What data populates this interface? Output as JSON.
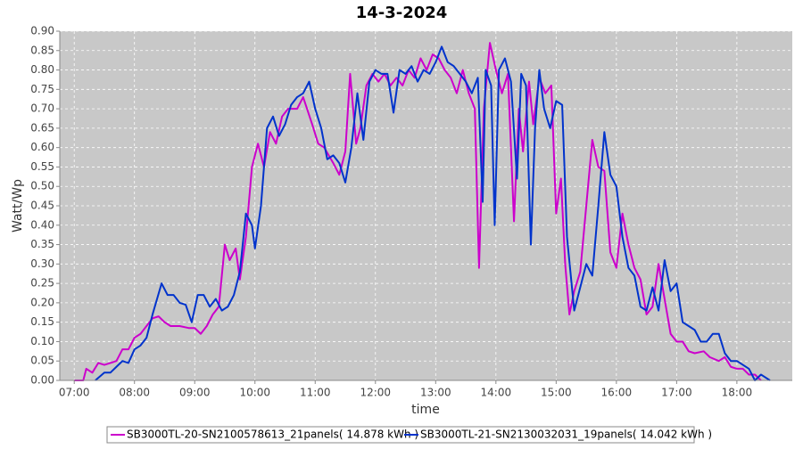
{
  "chart_data": {
    "type": "line",
    "title": "14-3-2024",
    "x_label": "time",
    "y_label": "Watt/Wp",
    "grid": true,
    "legend": "bottom",
    "xlim": [
      6.76,
      18.92
    ],
    "ylim": [
      0,
      0.9
    ],
    "xticks": [
      {
        "value": 7,
        "label": "07:00"
      },
      {
        "value": 8,
        "label": "08:00"
      },
      {
        "value": 9,
        "label": "09:00"
      },
      {
        "value": 10,
        "label": "10:00"
      },
      {
        "value": 11,
        "label": "11:00"
      },
      {
        "value": 12,
        "label": "12:00"
      },
      {
        "value": 13,
        "label": "13:00"
      },
      {
        "value": 14,
        "label": "14:00"
      },
      {
        "value": 15,
        "label": "15:00"
      },
      {
        "value": 16,
        "label": "16:00"
      },
      {
        "value": 17,
        "label": "17:00"
      },
      {
        "value": 18,
        "label": "18:00"
      }
    ],
    "yticks": [
      {
        "value": 0,
        "label": "0.00"
      },
      {
        "value": 0.05,
        "label": "0.05"
      },
      {
        "value": 0.1,
        "label": "0.10"
      },
      {
        "value": 0.15,
        "label": "0.15"
      },
      {
        "value": 0.2,
        "label": "0.20"
      },
      {
        "value": 0.25,
        "label": "0.25"
      },
      {
        "value": 0.3,
        "label": "0.30"
      },
      {
        "value": 0.35,
        "label": "0.35"
      },
      {
        "value": 0.4,
        "label": "0.40"
      },
      {
        "value": 0.45,
        "label": "0.45"
      },
      {
        "value": 0.5,
        "label": "0.50"
      },
      {
        "value": 0.55,
        "label": "0.55"
      },
      {
        "value": 0.6,
        "label": "0.60"
      },
      {
        "value": 0.65,
        "label": "0.65"
      },
      {
        "value": 0.7,
        "label": "0.70"
      },
      {
        "value": 0.75,
        "label": "0.75"
      },
      {
        "value": 0.8,
        "label": "0.80"
      },
      {
        "value": 0.85,
        "label": "0.85"
      },
      {
        "value": 0.9,
        "label": "0.90"
      }
    ],
    "series": [
      {
        "name": "SB3000TL-20-SN2100578613_21panels( 14.878 kWh )",
        "color": "#cc00cc",
        "x": [
          7.0,
          7.15,
          7.2,
          7.3,
          7.4,
          7.5,
          7.6,
          7.7,
          7.8,
          7.9,
          8.0,
          8.1,
          8.2,
          8.3,
          8.4,
          8.5,
          8.6,
          8.75,
          8.9,
          9.0,
          9.1,
          9.2,
          9.3,
          9.4,
          9.5,
          9.58,
          9.68,
          9.75,
          9.85,
          9.95,
          10.05,
          10.15,
          10.25,
          10.35,
          10.45,
          10.55,
          10.7,
          10.8,
          10.95,
          11.05,
          11.15,
          11.3,
          11.4,
          11.5,
          11.58,
          11.68,
          11.75,
          11.85,
          11.95,
          12.05,
          12.15,
          12.25,
          12.35,
          12.45,
          12.55,
          12.65,
          12.75,
          12.85,
          12.95,
          13.05,
          13.15,
          13.25,
          13.35,
          13.45,
          13.55,
          13.65,
          13.72,
          13.8,
          13.9,
          14.0,
          14.1,
          14.2,
          14.3,
          14.38,
          14.45,
          14.55,
          14.62,
          14.72,
          14.82,
          14.92,
          15.0,
          15.08,
          15.15,
          15.22,
          15.3,
          15.4,
          15.5,
          15.6,
          15.7,
          15.8,
          15.9,
          16.0,
          16.1,
          16.2,
          16.3,
          16.4,
          16.5,
          16.6,
          16.7,
          16.8,
          16.9,
          17.0,
          17.1,
          17.2,
          17.3,
          17.45,
          17.55,
          17.7,
          17.8,
          17.9,
          18.0,
          18.1,
          18.2,
          18.3,
          18.4
        ],
        "values": [
          0,
          0,
          0.03,
          0.02,
          0.045,
          0.04,
          0.045,
          0.05,
          0.08,
          0.08,
          0.11,
          0.12,
          0.14,
          0.16,
          0.165,
          0.15,
          0.14,
          0.14,
          0.135,
          0.135,
          0.12,
          0.14,
          0.17,
          0.19,
          0.35,
          0.31,
          0.34,
          0.26,
          0.37,
          0.55,
          0.61,
          0.55,
          0.64,
          0.61,
          0.68,
          0.7,
          0.7,
          0.73,
          0.66,
          0.61,
          0.6,
          0.56,
          0.53,
          0.59,
          0.79,
          0.61,
          0.65,
          0.76,
          0.79,
          0.77,
          0.79,
          0.76,
          0.78,
          0.76,
          0.8,
          0.78,
          0.83,
          0.8,
          0.84,
          0.83,
          0.8,
          0.78,
          0.74,
          0.8,
          0.74,
          0.7,
          0.29,
          0.7,
          0.87,
          0.8,
          0.74,
          0.79,
          0.41,
          0.7,
          0.59,
          0.77,
          0.66,
          0.78,
          0.74,
          0.76,
          0.43,
          0.52,
          0.3,
          0.17,
          0.23,
          0.28,
          0.45,
          0.62,
          0.55,
          0.54,
          0.33,
          0.29,
          0.43,
          0.35,
          0.29,
          0.26,
          0.17,
          0.19,
          0.3,
          0.21,
          0.12,
          0.1,
          0.1,
          0.075,
          0.07,
          0.075,
          0.06,
          0.05,
          0.06,
          0.035,
          0.03,
          0.03,
          0.015,
          0.015,
          0
        ]
      },
      {
        "name": "SB3000TL-21-SN2130032031_19panels( 14.042 kWh )",
        "color": "#0033cc",
        "x": [
          7.35,
          7.5,
          7.6,
          7.7,
          7.8,
          7.9,
          8.0,
          8.1,
          8.2,
          8.3,
          8.45,
          8.55,
          8.65,
          8.75,
          8.85,
          8.95,
          9.05,
          9.15,
          9.25,
          9.35,
          9.45,
          9.55,
          9.65,
          9.75,
          9.85,
          9.95,
          10.0,
          10.1,
          10.2,
          10.3,
          10.4,
          10.5,
          10.6,
          10.7,
          10.8,
          10.9,
          11.0,
          11.1,
          11.2,
          11.3,
          11.4,
          11.5,
          11.6,
          11.7,
          11.8,
          11.9,
          12.0,
          12.1,
          12.2,
          12.3,
          12.4,
          12.5,
          12.6,
          12.7,
          12.8,
          12.9,
          13.0,
          13.1,
          13.2,
          13.3,
          13.4,
          13.5,
          13.6,
          13.7,
          13.78,
          13.83,
          13.92,
          13.98,
          14.05,
          14.15,
          14.25,
          14.35,
          14.42,
          14.5,
          14.58,
          14.65,
          14.72,
          14.8,
          14.9,
          15.0,
          15.1,
          15.18,
          15.3,
          15.4,
          15.5,
          15.6,
          15.7,
          15.8,
          15.9,
          16.0,
          16.1,
          16.2,
          16.3,
          16.4,
          16.5,
          16.6,
          16.7,
          16.8,
          16.9,
          17.0,
          17.1,
          17.2,
          17.3,
          17.4,
          17.5,
          17.6,
          17.7,
          17.8,
          17.9,
          18.0,
          18.1,
          18.2,
          18.3,
          18.4,
          18.55
        ],
        "values": [
          0,
          0.02,
          0.02,
          0.035,
          0.05,
          0.045,
          0.08,
          0.09,
          0.11,
          0.17,
          0.25,
          0.22,
          0.22,
          0.2,
          0.195,
          0.15,
          0.22,
          0.22,
          0.19,
          0.21,
          0.18,
          0.19,
          0.22,
          0.28,
          0.43,
          0.4,
          0.34,
          0.45,
          0.65,
          0.68,
          0.63,
          0.66,
          0.71,
          0.73,
          0.74,
          0.77,
          0.7,
          0.65,
          0.57,
          0.58,
          0.56,
          0.51,
          0.6,
          0.74,
          0.62,
          0.77,
          0.8,
          0.79,
          0.79,
          0.69,
          0.8,
          0.79,
          0.81,
          0.77,
          0.8,
          0.79,
          0.82,
          0.86,
          0.82,
          0.81,
          0.79,
          0.77,
          0.74,
          0.78,
          0.46,
          0.8,
          0.76,
          0.4,
          0.8,
          0.83,
          0.77,
          0.52,
          0.79,
          0.76,
          0.35,
          0.65,
          0.8,
          0.7,
          0.65,
          0.72,
          0.71,
          0.37,
          0.18,
          0.24,
          0.3,
          0.27,
          0.45,
          0.64,
          0.53,
          0.5,
          0.37,
          0.29,
          0.27,
          0.19,
          0.18,
          0.24,
          0.18,
          0.31,
          0.23,
          0.25,
          0.15,
          0.14,
          0.13,
          0.1,
          0.1,
          0.12,
          0.12,
          0.07,
          0.05,
          0.05,
          0.04,
          0.03,
          0,
          0.015,
          0
        ]
      }
    ]
  }
}
